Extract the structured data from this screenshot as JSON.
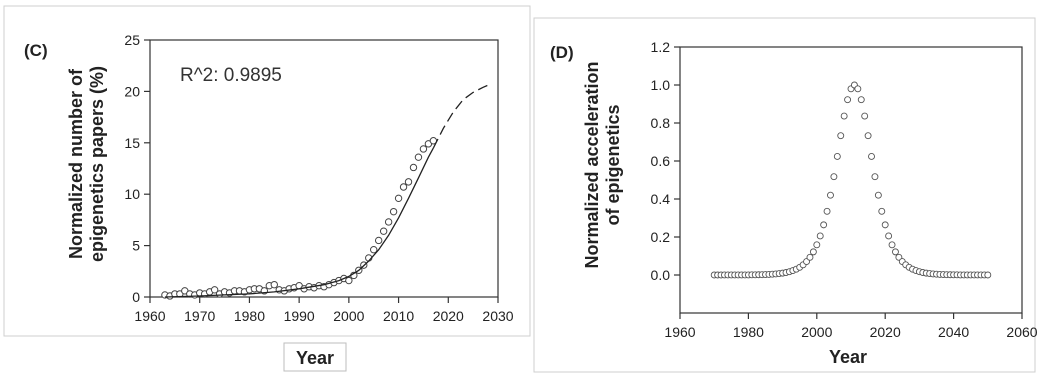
{
  "chart_data": [
    {
      "panel_label": "(C)",
      "type": "scatter",
      "title": "",
      "annotation": "R^2: 0.9895",
      "xlabel": "Year",
      "ylabel_line1": "Normalized number of",
      "ylabel_line2": "epigenetics papers (%)",
      "xlim": [
        1960,
        2030
      ],
      "ylim": [
        0,
        25
      ],
      "xticks": [
        "1960",
        "1970",
        "1980",
        "1990",
        "2000",
        "2010",
        "2020",
        "2030"
      ],
      "yticks": [
        "0",
        "5",
        "10",
        "15",
        "20",
        "25"
      ],
      "grid": false,
      "legend": "none",
      "series": [
        {
          "kind": "points",
          "marker": "open-circle",
          "x": [
            1963,
            1964,
            1965,
            1966,
            1967,
            1968,
            1969,
            1970,
            1971,
            1972,
            1973,
            1974,
            1975,
            1976,
            1977,
            1978,
            1979,
            1980,
            1981,
            1982,
            1983,
            1984,
            1985,
            1986,
            1987,
            1988,
            1989,
            1990,
            1991,
            1992,
            1993,
            1994,
            1995,
            1996,
            1997,
            1998,
            1999,
            2000,
            2001,
            2002,
            2003,
            2004,
            2005,
            2006,
            2007,
            2008,
            2009,
            2010,
            2011,
            2012,
            2013,
            2014,
            2015,
            2016,
            2017
          ],
          "y": [
            0.2,
            0.1,
            0.3,
            0.3,
            0.6,
            0.3,
            0.2,
            0.4,
            0.3,
            0.5,
            0.7,
            0.3,
            0.5,
            0.4,
            0.6,
            0.6,
            0.5,
            0.7,
            0.8,
            0.8,
            0.6,
            1.1,
            1.2,
            0.7,
            0.6,
            0.8,
            0.9,
            1.1,
            0.8,
            1.0,
            0.9,
            1.1,
            1.0,
            1.2,
            1.4,
            1.6,
            1.8,
            1.6,
            2.1,
            2.6,
            3.1,
            3.8,
            4.6,
            5.5,
            6.4,
            7.3,
            8.3,
            9.6,
            10.7,
            11.2,
            12.6,
            13.6,
            14.4,
            14.9,
            15.2
          ]
        },
        {
          "kind": "fit-solid",
          "x": [
            1963,
            1970,
            1975,
            1980,
            1985,
            1990,
            1995,
            1998,
            2000,
            2002,
            2004,
            2006,
            2008,
            2010,
            2012,
            2014,
            2016,
            2017
          ],
          "y": [
            0.0,
            0.1,
            0.2,
            0.3,
            0.5,
            0.8,
            1.2,
            1.6,
            2.0,
            2.6,
            3.5,
            4.6,
            6.0,
            7.7,
            9.6,
            11.6,
            13.6,
            14.5
          ]
        },
        {
          "kind": "fit-dashed",
          "x": [
            2017,
            2019,
            2021,
            2023,
            2025,
            2027,
            2028
          ],
          "y": [
            14.5,
            16.4,
            18.0,
            19.2,
            19.9,
            20.4,
            20.6
          ]
        }
      ]
    },
    {
      "panel_label": "(D)",
      "type": "scatter",
      "title": "",
      "xlabel": "Year",
      "ylabel_line1": "Normalized acceleration",
      "ylabel_line2": "of epigenetics",
      "xlim": [
        1960,
        2060
      ],
      "ylim": [
        -0.2,
        1.2
      ],
      "xticks": [
        "1960",
        "1980",
        "2000",
        "2020",
        "2040",
        "2060"
      ],
      "yticks": [
        "0.0",
        "0.2",
        "0.4",
        "0.6",
        "0.8",
        "1.0",
        "1.2"
      ],
      "grid": false,
      "legend": "none",
      "series": [
        {
          "kind": "points",
          "marker": "open-circle",
          "model": "logistic derivative peak, centre 2011, width 7, normalized to 1 at peak",
          "x_start": 1970,
          "x_end": 2050,
          "x_step": 1,
          "center": 2011,
          "width": 7
        }
      ]
    }
  ]
}
